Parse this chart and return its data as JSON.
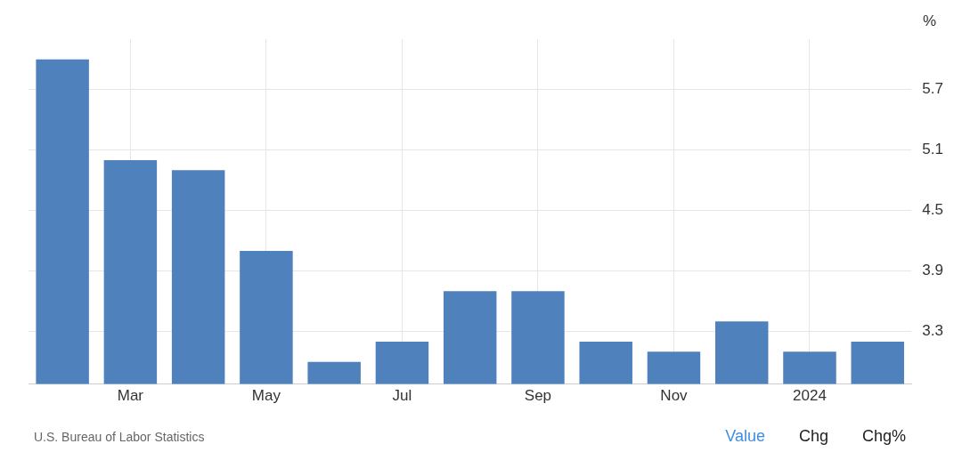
{
  "chart_data": {
    "type": "bar",
    "ylabel": "%",
    "categories": [
      null,
      "Mar",
      null,
      "May",
      null,
      "Jul",
      null,
      "Sep",
      null,
      "Nov",
      null,
      "2024",
      null
    ],
    "values": [
      6.0,
      5.0,
      4.9,
      4.1,
      3.0,
      3.2,
      3.7,
      3.7,
      3.2,
      3.1,
      3.4,
      3.1,
      3.2
    ],
    "color": "#4f81bd",
    "ylim": [
      2.78,
      6.2
    ],
    "yticks": [
      3.3,
      3.9,
      4.5,
      5.1,
      5.7
    ],
    "grid": true,
    "legend": false,
    "annotations": [
      "U.S. Bureau of Labor Statistics",
      "Value",
      "Chg",
      "Chg%"
    ]
  }
}
